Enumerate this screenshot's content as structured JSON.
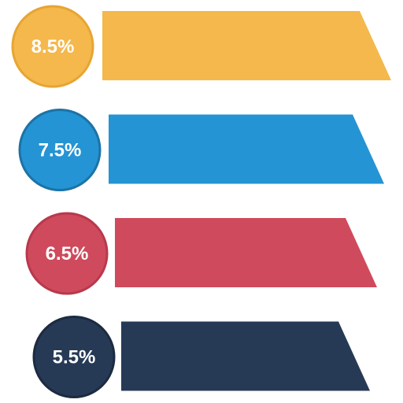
{
  "chart_data": {
    "type": "bar",
    "categories": [
      "",
      "",
      "",
      ""
    ],
    "values": [
      8.5,
      7.5,
      6.5,
      5.5
    ],
    "labels": [
      "8.5%",
      "7.5%",
      "6.5%",
      "5.5%"
    ],
    "colors": [
      "#F4B84C",
      "#2494D4",
      "#CF4A5C",
      "#263A56"
    ],
    "borders": [
      "#E7A533",
      "#1C73A6",
      "#B8394C",
      "#1D2B40"
    ],
    "title": "",
    "xlabel": "",
    "ylabel": "",
    "grid": false,
    "legend": "none",
    "style": "infographic trapezoid bars with circular value badges"
  }
}
